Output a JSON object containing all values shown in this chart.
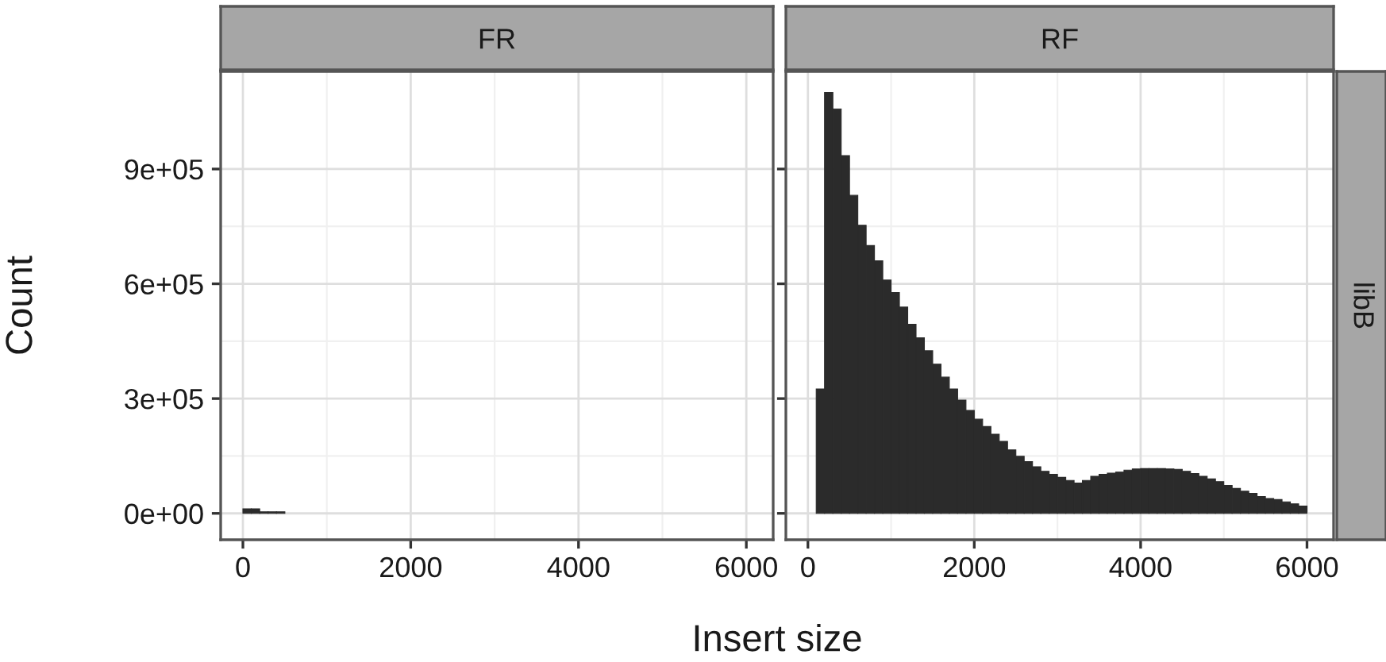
{
  "chart_data": [
    {
      "type": "histogram",
      "title": "FR",
      "xlabel": "Insert size",
      "ylabel": "Count",
      "color": "#2b2b2b",
      "bins": [
        0,
        100,
        200,
        300,
        400,
        500
      ],
      "values": [
        12000,
        12000,
        4000,
        4000,
        4000
      ],
      "xlim": [
        -265,
        6320
      ],
      "xticks": [
        0,
        2000,
        4000,
        6000
      ],
      "ylim": [
        -69000,
        1155000
      ],
      "yticks": [
        {
          "value": 0,
          "label": "0e+00"
        },
        {
          "value": 300000,
          "label": "3e+05"
        },
        {
          "value": 600000,
          "label": "6e+05"
        },
        {
          "value": 900000,
          "label": "9e+05"
        }
      ],
      "grid": true
    },
    {
      "type": "histogram",
      "title": "RF",
      "annotations": [
        "libB"
      ],
      "color": "#2b2b2b",
      "bins": [
        100,
        200,
        300,
        400,
        500,
        600,
        700,
        800,
        900,
        1000,
        1100,
        1200,
        1300,
        1400,
        1500,
        1600,
        1700,
        1800,
        1900,
        2000,
        2100,
        2200,
        2300,
        2400,
        2500,
        2600,
        2700,
        2800,
        2900,
        3000,
        3100,
        3200,
        3300,
        3400,
        3500,
        3600,
        3700,
        3800,
        3900,
        4000,
        4100,
        4200,
        4300,
        4400,
        4500,
        4600,
        4700,
        4800,
        4900,
        5000,
        5100,
        5200,
        5300,
        5400,
        5500,
        5600,
        5700,
        5800,
        5900,
        6000
      ],
      "values": [
        325000,
        1100000,
        1057000,
        935000,
        831000,
        753000,
        700000,
        660000,
        610000,
        577000,
        539000,
        494000,
        459000,
        425000,
        390000,
        356000,
        325000,
        296000,
        269000,
        246000,
        227000,
        207000,
        188000,
        166000,
        149000,
        135000,
        122000,
        110000,
        102000,
        94000,
        86000,
        79000,
        86000,
        97000,
        102000,
        105000,
        108000,
        113000,
        116000,
        117000,
        117000,
        117000,
        116000,
        115000,
        110000,
        104000,
        97000,
        90000,
        83000,
        73000,
        65000,
        58000,
        52000,
        44000,
        39000,
        36000,
        30000,
        25000,
        19000
      ],
      "xlim": [
        -265,
        6320
      ],
      "xticks": [
        0,
        2000,
        4000,
        6000
      ],
      "ylim": [
        -69000,
        1155000
      ],
      "yticks": [
        {
          "value": 0,
          "label": null
        },
        {
          "value": 300000,
          "label": null
        },
        {
          "value": 600000,
          "label": null
        },
        {
          "value": 900000,
          "label": null
        }
      ],
      "grid": true,
      "tick_labels": "x"
    }
  ]
}
